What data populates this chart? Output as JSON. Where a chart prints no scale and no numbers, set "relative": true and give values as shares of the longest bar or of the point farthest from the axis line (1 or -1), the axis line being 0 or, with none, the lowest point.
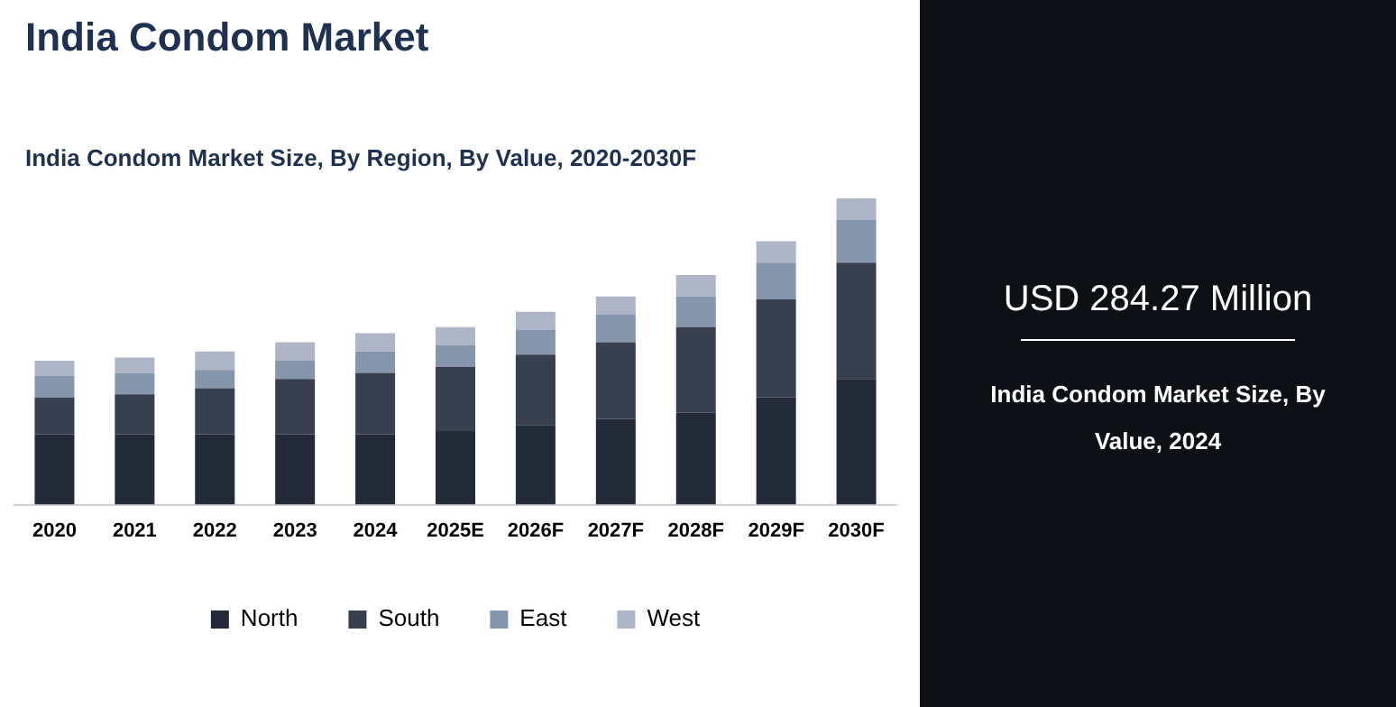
{
  "chart_data": {
    "type": "bar",
    "title": "India Condom Market",
    "subtitle": "India Condom Market Size, By Region, By Value, 2020-2030F",
    "categories": [
      "2020",
      "2021",
      "2022",
      "2023",
      "2024",
      "2025E",
      "2026F",
      "2027F",
      "2028F",
      "2029F",
      "2030F"
    ],
    "stacked": true,
    "relative": true,
    "legend": "bottom",
    "grid": false,
    "series": [
      {
        "name": "North",
        "color": "#232b38",
        "values": [
          0.23,
          0.23,
          0.23,
          0.23,
          0.23,
          0.24,
          0.26,
          0.28,
          0.3,
          0.35,
          0.41
        ]
      },
      {
        "name": "South",
        "color": "#383f4f",
        "values": [
          0.12,
          0.13,
          0.15,
          0.18,
          0.2,
          0.21,
          0.23,
          0.25,
          0.28,
          0.32,
          0.38
        ]
      },
      {
        "name": "East",
        "color": "#8595ab",
        "values": [
          0.07,
          0.07,
          0.06,
          0.06,
          0.07,
          0.07,
          0.08,
          0.09,
          0.1,
          0.12,
          0.14
        ]
      },
      {
        "name": "West",
        "color": "#adb5c7",
        "values": [
          0.05,
          0.05,
          0.06,
          0.06,
          0.06,
          0.06,
          0.06,
          0.06,
          0.07,
          0.07,
          0.07
        ]
      }
    ],
    "annotations": [
      "USD 284.27 Million",
      "India Condom Market Size, By Value, 2024"
    ]
  }
}
